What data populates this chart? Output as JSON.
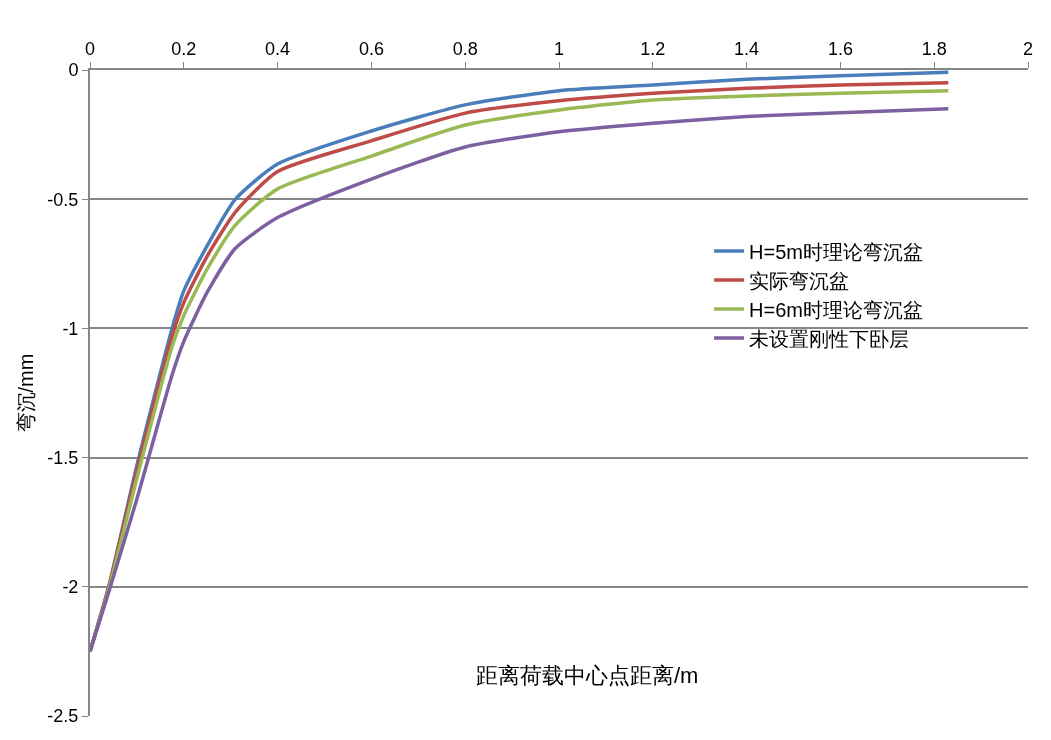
{
  "chart_data": {
    "type": "line",
    "xlabel": "距离荷载中心点距离/m",
    "ylabel": "弯沉/mm",
    "x": [
      0,
      0.04,
      0.1,
      0.175,
      0.2,
      0.25,
      0.31,
      0.4,
      0.6,
      0.8,
      1.0,
      1.2,
      1.4,
      1.6,
      1.83
    ],
    "series": [
      {
        "name": "H=5m时理论弯沉盆",
        "color": "#4a7ebb",
        "values": [
          -2.25,
          -2.0,
          -1.53,
          -1.0,
          -0.855,
          -0.68,
          -0.5,
          -0.364,
          -0.236,
          -0.135,
          -0.08,
          -0.058,
          -0.036,
          -0.022,
          -0.009
        ]
      },
      {
        "name": "实际弯沉盆",
        "color": "#be4b48",
        "values": [
          -2.25,
          -2.0,
          -1.55,
          -1.03,
          -0.9,
          -0.72,
          -0.55,
          -0.393,
          -0.274,
          -0.167,
          -0.119,
          -0.09,
          -0.071,
          -0.058,
          -0.049
        ]
      },
      {
        "name": "H=6m时理论弯沉盆",
        "color": "#98b954",
        "values": [
          -2.25,
          -2.01,
          -1.58,
          -1.07,
          -0.95,
          -0.77,
          -0.6,
          -0.46,
          -0.333,
          -0.213,
          -0.155,
          -0.116,
          -0.101,
          -0.09,
          -0.08
        ]
      },
      {
        "name": "未设置刚性下卧层",
        "color": "#7d60a0",
        "values": [
          -2.25,
          -2.02,
          -1.66,
          -1.18,
          -1.05,
          -0.86,
          -0.69,
          -0.571,
          -0.422,
          -0.298,
          -0.239,
          -0.206,
          -0.18,
          -0.165,
          -0.15
        ]
      }
    ],
    "xlim": [
      0,
      2
    ],
    "xticks": [
      0,
      0.2,
      0.4,
      0.6,
      0.8,
      1,
      1.2,
      1.4,
      1.6,
      1.8,
      2
    ],
    "ylim": [
      -2.5,
      0
    ],
    "yticks": [
      -2.5,
      -2,
      -1.5,
      -1,
      -0.5,
      0
    ],
    "grid": "y",
    "legend": "right",
    "marker": "none",
    "line_style": "solid"
  }
}
